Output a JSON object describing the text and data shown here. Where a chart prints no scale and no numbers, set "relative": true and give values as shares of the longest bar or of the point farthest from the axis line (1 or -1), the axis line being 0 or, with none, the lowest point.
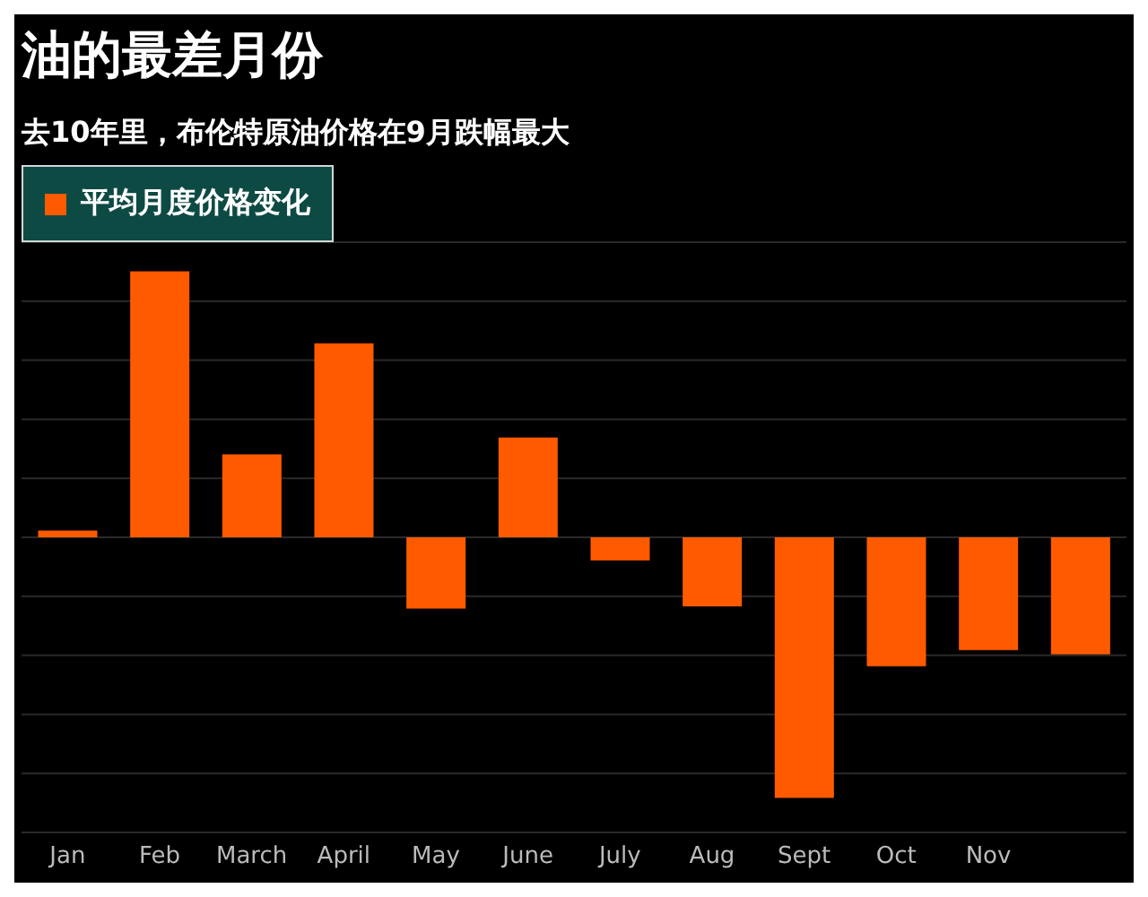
{
  "chart_data": {
    "type": "bar",
    "title": "油的最差月份",
    "subtitle": "去10年里，布伦特原油价格在9月跌幅最大",
    "categories": [
      "Jan",
      "Feb",
      "March",
      "April",
      "May",
      "June",
      "July",
      "Aug",
      "Sept",
      "Oct",
      "Nov",
      null
    ],
    "series": [
      {
        "name": "平均月度价格变化",
        "color": "#ff5a00",
        "values": [
          0.025,
          1,
          0.312,
          0.73,
          -0.268,
          0.375,
          -0.087,
          -0.26,
          -0.98,
          -0.485,
          -0.424,
          -0.44
        ]
      }
    ],
    "relative": true,
    "grid": "y",
    "legend": "top left"
  }
}
